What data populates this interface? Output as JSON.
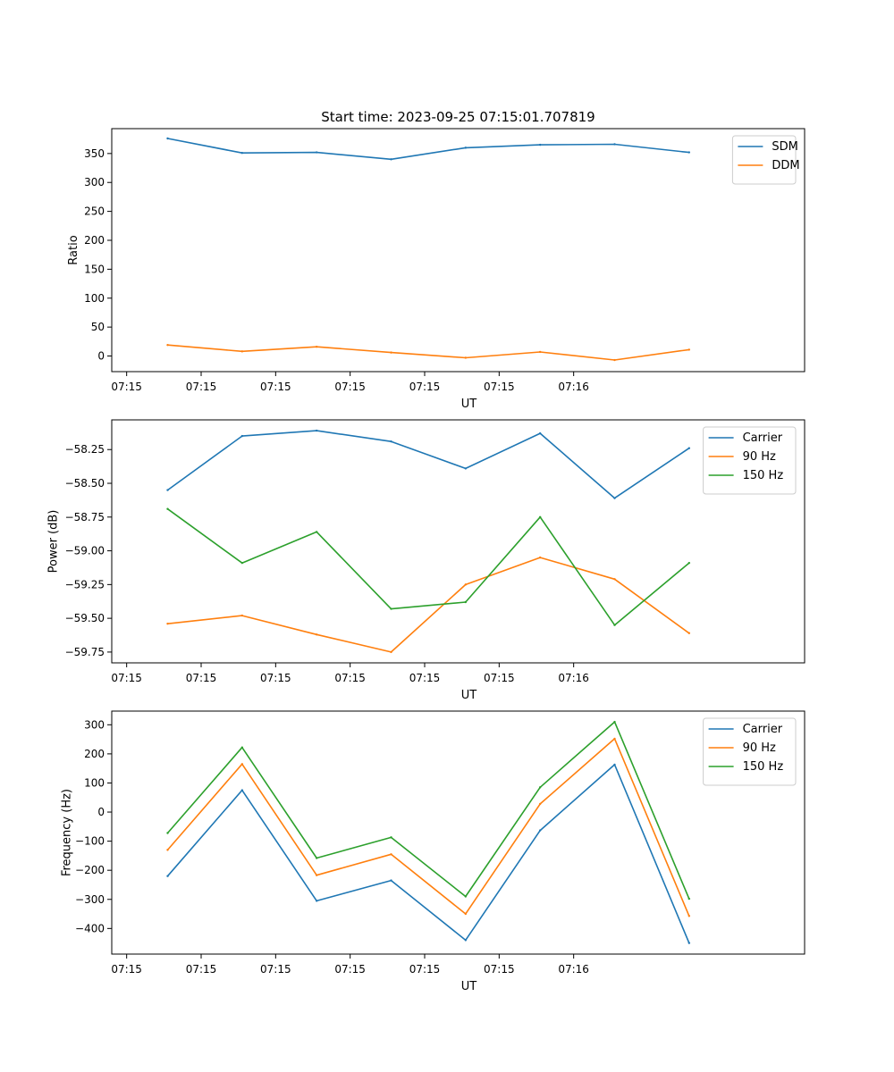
{
  "colors": {
    "blue": "#1f77b4",
    "orange": "#ff7f0e",
    "green": "#2ca02c",
    "axis": "#000000",
    "legend_border": "#cccccc"
  },
  "chart_data": [
    {
      "type": "line",
      "title": "Start time: 2023-09-25 07:15:01.707819",
      "xlabel": "UT",
      "ylabel": "Ratio",
      "x_tick_labels": [
        "07:15",
        "07:15",
        "07:15",
        "07:15",
        "07:15",
        "07:15",
        "07:16"
      ],
      "xlim": [
        -0.2,
        9.1
      ],
      "ylim": [
        -27,
        393
      ],
      "y_ticks": [
        0,
        50,
        100,
        150,
        200,
        250,
        300,
        350
      ],
      "y_tick_labels": [
        "0",
        "50",
        "100",
        "150",
        "200",
        "250",
        "300",
        "350"
      ],
      "x": [
        0.55,
        1.55,
        2.55,
        3.55,
        4.55,
        5.55,
        6.55,
        7.55
      ],
      "legend_position": "top-right",
      "series": [
        {
          "name": "SDM",
          "color": "#1f77b4",
          "values": [
            376,
            351,
            352,
            340,
            360,
            365,
            366,
            352
          ]
        },
        {
          "name": "DDM",
          "color": "#ff7f0e",
          "values": [
            19,
            8,
            16,
            6,
            -3,
            7,
            -7,
            11
          ]
        }
      ]
    },
    {
      "type": "line",
      "title": "",
      "xlabel": "UT",
      "ylabel": "Power (dB)",
      "x_tick_labels": [
        "07:15",
        "07:15",
        "07:15",
        "07:15",
        "07:15",
        "07:15",
        "07:16"
      ],
      "xlim": [
        -0.2,
        9.1
      ],
      "ylim": [
        -59.83,
        -58.03
      ],
      "y_ticks": [
        -58.25,
        -58.5,
        -58.75,
        -59.0,
        -59.25,
        -59.5,
        -59.75
      ],
      "y_tick_labels": [
        "−58.25",
        "−58.50",
        "−58.75",
        "−59.00",
        "−59.25",
        "−59.50",
        "−59.75"
      ],
      "x": [
        0.55,
        1.55,
        2.55,
        3.55,
        4.55,
        5.55,
        6.55,
        7.55
      ],
      "legend_position": "top-right",
      "series": [
        {
          "name": "Carrier",
          "color": "#1f77b4",
          "values": [
            -58.55,
            -58.15,
            -58.11,
            -58.19,
            -58.39,
            -58.13,
            -58.61,
            -58.24
          ]
        },
        {
          "name": "90 Hz",
          "color": "#ff7f0e",
          "values": [
            -59.54,
            -59.48,
            -59.62,
            -59.75,
            -59.25,
            -59.05,
            -59.21,
            -59.61
          ]
        },
        {
          "name": "150 Hz",
          "color": "#2ca02c",
          "values": [
            -58.69,
            -59.09,
            -58.86,
            -59.43,
            -59.38,
            -58.75,
            -59.55,
            -59.09
          ]
        }
      ]
    },
    {
      "type": "line",
      "title": "",
      "xlabel": "UT",
      "ylabel": "Frequency (Hz)",
      "x_tick_labels": [
        "07:15",
        "07:15",
        "07:15",
        "07:15",
        "07:15",
        "07:15",
        "07:16"
      ],
      "xlim": [
        -0.2,
        9.1
      ],
      "ylim": [
        -488,
        347
      ],
      "y_ticks": [
        300,
        200,
        100,
        0,
        -100,
        -200,
        -300,
        -400
      ],
      "y_tick_labels": [
        "300",
        "200",
        "100",
        "0",
        "−100",
        "−200",
        "−300",
        "−400"
      ],
      "x": [
        0.55,
        1.55,
        2.55,
        3.55,
        4.55,
        5.55,
        6.55,
        7.55
      ],
      "legend_position": "top-right",
      "series": [
        {
          "name": "Carrier",
          "color": "#1f77b4",
          "values": [
            -220,
            75,
            -305,
            -235,
            -440,
            -63,
            163,
            -450
          ]
        },
        {
          "name": "90 Hz",
          "color": "#ff7f0e",
          "values": [
            -130,
            165,
            -217,
            -145,
            -350,
            28,
            252,
            -357
          ]
        },
        {
          "name": "150 Hz",
          "color": "#2ca02c",
          "values": [
            -72,
            222,
            -158,
            -87,
            -290,
            85,
            310,
            -298
          ]
        }
      ]
    }
  ]
}
